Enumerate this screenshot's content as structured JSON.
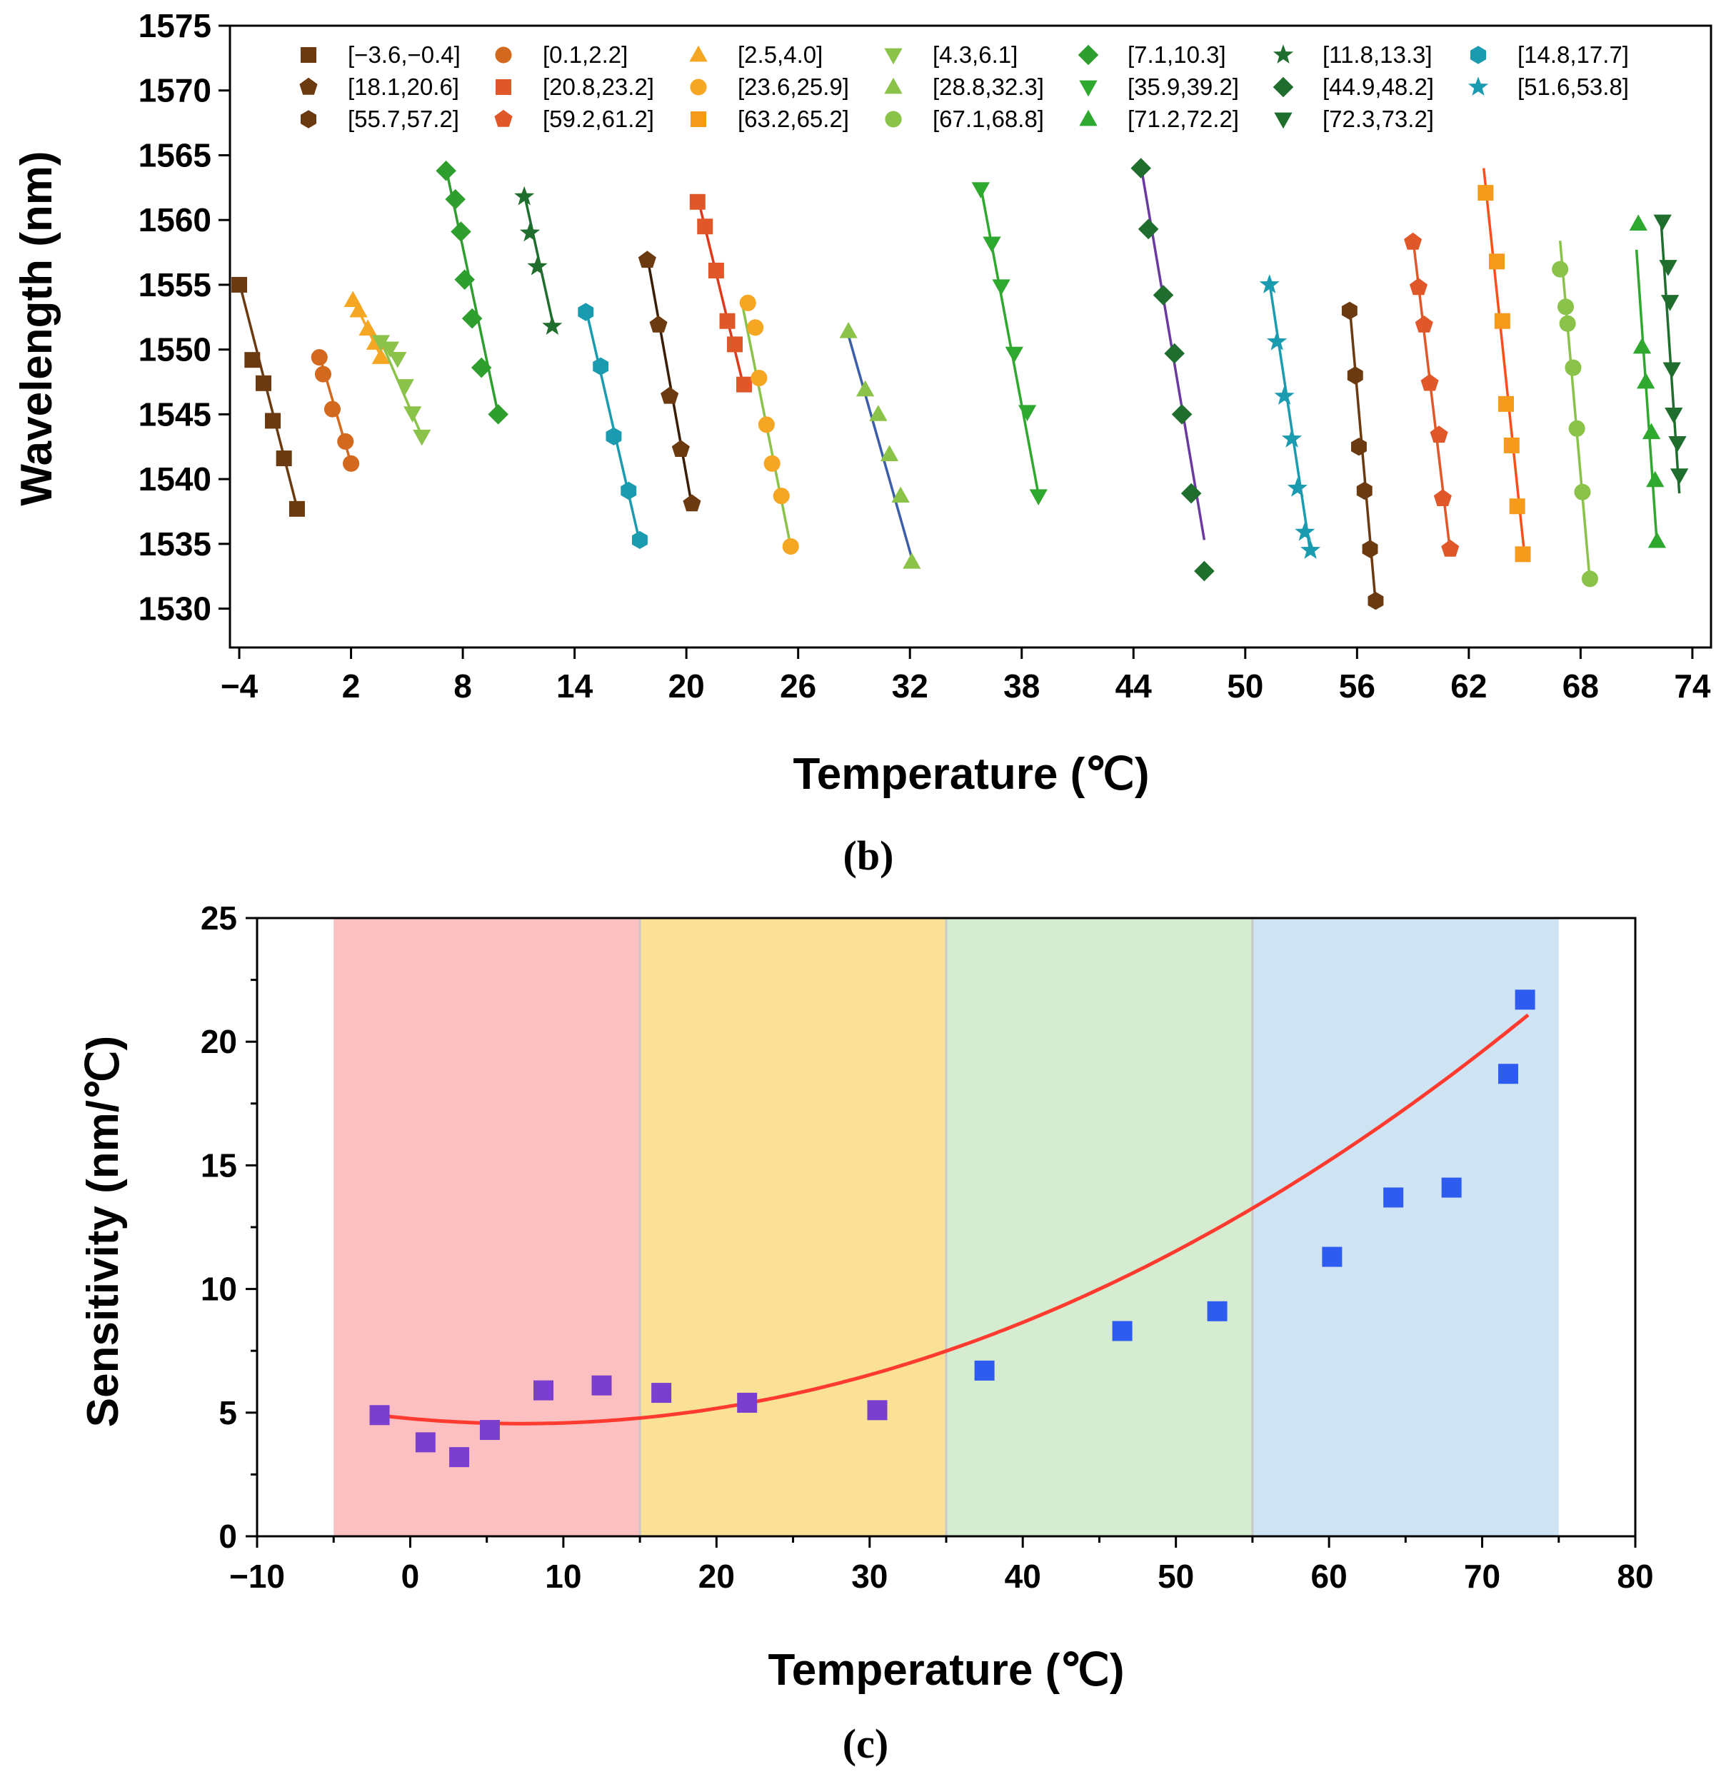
{
  "chart_data": [
    {
      "type": "scatter",
      "panel": "(b)",
      "caption_label": "b",
      "xlabel": "Temperature (℃)",
      "ylabel": "Wavelength (nm)",
      "xlim": [
        -4.5,
        75
      ],
      "ylim": [
        1527,
        1575
      ],
      "xticks": [
        -4,
        2,
        8,
        14,
        20,
        26,
        32,
        38,
        44,
        50,
        56,
        62,
        68,
        74
      ],
      "xtick_labels": [
        "−4",
        "2",
        "8",
        "14",
        "20",
        "26",
        "32",
        "38",
        "44",
        "50",
        "56",
        "62",
        "68",
        "74"
      ],
      "yticks": [
        1530,
        1535,
        1540,
        1545,
        1550,
        1555,
        1560,
        1565,
        1570,
        1575
      ],
      "grid": false,
      "series": [
        {
          "name": "[−3.6,−0.4]",
          "marker": "square",
          "color": "#6b3a10",
          "x": [
            -4.0,
            -3.3,
            -2.7,
            -2.2,
            -1.6,
            -0.9
          ],
          "y": [
            1555.0,
            1549.2,
            1547.4,
            1544.5,
            1541.6,
            1537.7
          ]
        },
        {
          "name": "[0.1,2.2]",
          "marker": "circle",
          "color": "#d2691e",
          "x": [
            0.3,
            0.5,
            1.0,
            1.7,
            2.0
          ],
          "y": [
            1549.4,
            1548.1,
            1545.4,
            1542.9,
            1541.2
          ]
        },
        {
          "name": "[2.5,4.0]",
          "marker": "triangle-up",
          "color": "#f5a623",
          "x": [
            2.1,
            2.4,
            2.9,
            3.3,
            3.6
          ],
          "y": [
            1553.8,
            1553.0,
            1551.6,
            1550.5,
            1549.4
          ]
        },
        {
          "name": "[4.3,6.1]",
          "marker": "triangle-down",
          "color": "#8bc34a",
          "x": [
            3.6,
            4.1,
            4.5,
            4.9,
            5.3,
            5.8
          ],
          "y": [
            1550.6,
            1550.1,
            1549.3,
            1547.2,
            1545.1,
            1543.3
          ]
        },
        {
          "name": "[7.1,10.3]",
          "marker": "diamond",
          "color": "#2e9e2e",
          "x": [
            7.1,
            7.6,
            7.9,
            8.1,
            8.5,
            9.0,
            9.9
          ],
          "y": [
            1563.8,
            1561.6,
            1559.1,
            1555.4,
            1552.4,
            1548.6,
            1545.0
          ]
        },
        {
          "name": "[11.8,13.3]",
          "marker": "star",
          "color": "#1f6e2e",
          "x": [
            11.3,
            11.6,
            12.0,
            12.8
          ],
          "y": [
            1561.8,
            1559.0,
            1556.4,
            1551.8
          ]
        },
        {
          "name": "[14.8,17.7]",
          "marker": "hexagon",
          "color": "#1b9bb0",
          "x": [
            14.6,
            15.4,
            16.1,
            16.9,
            17.5
          ],
          "y": [
            1552.9,
            1548.7,
            1543.3,
            1539.1,
            1535.3
          ]
        },
        {
          "name": "[18.1,20.6]",
          "marker": "pentagon",
          "color": "#6b3a10",
          "x": [
            17.9,
            18.5,
            19.1,
            19.7,
            20.3
          ],
          "y": [
            1556.9,
            1551.9,
            1546.4,
            1542.3,
            1538.1
          ]
        },
        {
          "name": "[20.8,23.2]",
          "marker": "square",
          "color": "#e0582a",
          "x": [
            20.6,
            21.0,
            21.6,
            22.2,
            22.6,
            23.1
          ],
          "y": [
            1561.4,
            1559.5,
            1556.1,
            1552.2,
            1550.4,
            1547.3
          ]
        },
        {
          "name": "[23.6,25.9]",
          "marker": "circle",
          "color": "#f5a623",
          "x": [
            23.3,
            23.7,
            23.9,
            24.3,
            24.6,
            25.1,
            25.6
          ],
          "y": [
            1553.6,
            1551.7,
            1547.8,
            1544.2,
            1541.2,
            1538.7,
            1534.8
          ]
        },
        {
          "name": "[28.8,32.3]",
          "marker": "triangle-up",
          "color": "#8bc34a",
          "x": [
            28.7,
            29.6,
            30.3,
            30.9,
            31.5,
            32.1
          ],
          "y": [
            1551.4,
            1546.9,
            1545.0,
            1541.9,
            1538.7,
            1533.6
          ]
        },
        {
          "name": "[35.9,39.2]",
          "marker": "triangle-down",
          "color": "#2ea82e",
          "x": [
            35.8,
            36.4,
            36.9,
            37.6,
            38.3,
            38.9
          ],
          "y": [
            1562.4,
            1558.2,
            1554.9,
            1549.7,
            1545.2,
            1538.7
          ]
        },
        {
          "name": "[44.9,48.2]",
          "marker": "diamond",
          "color": "#1f6e2e",
          "x": [
            44.4,
            44.8,
            45.6,
            46.2,
            46.6,
            47.1,
            47.8
          ],
          "y": [
            1564.0,
            1559.3,
            1554.2,
            1549.7,
            1545.0,
            1538.9,
            1532.9
          ]
        },
        {
          "name": "[51.6,53.8]",
          "marker": "star",
          "color": "#1b9bb0",
          "x": [
            51.3,
            51.7,
            52.1,
            52.5,
            52.8,
            53.2,
            53.5
          ],
          "y": [
            1555.0,
            1550.6,
            1546.4,
            1543.1,
            1539.3,
            1535.9,
            1534.5
          ]
        },
        {
          "name": "[55.7,57.2]",
          "marker": "hexagon",
          "color": "#6b3a10",
          "x": [
            55.6,
            55.9,
            56.1,
            56.4,
            56.7,
            57.0
          ],
          "y": [
            1553.0,
            1548.0,
            1542.5,
            1539.1,
            1534.6,
            1530.6
          ]
        },
        {
          "name": "[59.2,61.2]",
          "marker": "pentagon",
          "color": "#e0582a",
          "x": [
            59.0,
            59.3,
            59.6,
            59.9,
            60.4,
            60.6,
            61.0
          ],
          "y": [
            1558.3,
            1554.8,
            1551.9,
            1547.4,
            1543.4,
            1538.5,
            1534.6
          ]
        },
        {
          "name": "[63.2,65.2]",
          "marker": "square",
          "color": "#f59a1a",
          "x": [
            62.9,
            63.5,
            63.8,
            64.0,
            64.3,
            64.6,
            64.9
          ],
          "y": [
            1562.1,
            1556.8,
            1552.2,
            1545.8,
            1542.6,
            1537.9,
            1534.2
          ]
        },
        {
          "name": "[67.1,68.8]",
          "marker": "circle",
          "color": "#8bc34a",
          "x": [
            66.9,
            67.2,
            67.3,
            67.6,
            67.8,
            68.1,
            68.5
          ],
          "y": [
            1556.2,
            1553.3,
            1552.0,
            1548.6,
            1543.9,
            1539.0,
            1532.3
          ]
        },
        {
          "name": "[71.2,72.2]",
          "marker": "triangle-up",
          "color": "#2ea82e",
          "x": [
            71.1,
            71.3,
            71.5,
            71.8,
            72.0,
            72.1
          ],
          "y": [
            1559.7,
            1550.2,
            1547.5,
            1543.6,
            1539.9,
            1535.2
          ]
        },
        {
          "name": "[72.3,73.2]",
          "marker": "triangle-down",
          "color": "#1f6e2e",
          "x": [
            72.4,
            72.7,
            72.8,
            72.9,
            73.0,
            73.2,
            73.3
          ],
          "y": [
            1559.9,
            1556.4,
            1553.7,
            1548.5,
            1545.0,
            1542.8,
            1540.3
          ]
        }
      ],
      "fits": [
        {
          "color": "#6b3a10",
          "x": [
            -4.0,
            -0.9
          ],
          "y": [
            1555.2,
            1537.8
          ]
        },
        {
          "color": "#d2691e",
          "x": [
            0.3,
            2.0
          ],
          "y": [
            1549.6,
            1541.2
          ]
        },
        {
          "color": "#f5a623",
          "x": [
            2.1,
            3.7
          ],
          "y": [
            1553.9,
            1549.2
          ]
        },
        {
          "color": "#8bc34a",
          "x": [
            3.5,
            5.9
          ],
          "y": [
            1551.0,
            1543.0
          ]
        },
        {
          "color": "#2e9e2e",
          "x": [
            7.1,
            9.9
          ],
          "y": [
            1564.0,
            1545.0
          ]
        },
        {
          "color": "#1f6e2e",
          "x": [
            11.3,
            12.9
          ],
          "y": [
            1562.0,
            1551.6
          ]
        },
        {
          "color": "#1b9bb0",
          "x": [
            14.6,
            17.5
          ],
          "y": [
            1553.2,
            1535.1
          ]
        },
        {
          "color": "#3a1d05",
          "x": [
            17.9,
            20.3
          ],
          "y": [
            1557.2,
            1537.9
          ]
        },
        {
          "color": "#e0381a",
          "x": [
            20.6,
            23.1
          ],
          "y": [
            1561.8,
            1547.0
          ]
        },
        {
          "color": "#8bc34a",
          "x": [
            23.0,
            25.6
          ],
          "y": [
            1553.5,
            1534.8
          ]
        },
        {
          "color": "#3a5ea8",
          "x": [
            28.6,
            32.2
          ],
          "y": [
            1551.6,
            1533.4
          ]
        },
        {
          "color": "#2ea82e",
          "x": [
            35.8,
            38.9
          ],
          "y": [
            1562.6,
            1538.8
          ]
        },
        {
          "color": "#6a3aa0",
          "x": [
            44.4,
            47.8
          ],
          "y": [
            1564.2,
            1535.3
          ]
        },
        {
          "color": "#1b9bb0",
          "x": [
            51.3,
            53.5
          ],
          "y": [
            1555.2,
            1534.3
          ]
        },
        {
          "color": "#6b3a10",
          "x": [
            55.6,
            57.0
          ],
          "y": [
            1553.4,
            1530.4
          ]
        },
        {
          "color": "#e0582a",
          "x": [
            59.0,
            61.0
          ],
          "y": [
            1558.6,
            1534.4
          ]
        },
        {
          "color": "#ff4e1a",
          "x": [
            62.8,
            65.0
          ],
          "y": [
            1564.0,
            1534.0
          ]
        },
        {
          "color": "#8bc34a",
          "x": [
            66.9,
            68.5
          ],
          "y": [
            1558.4,
            1532.1
          ]
        },
        {
          "color": "#2ea82e",
          "x": [
            71.0,
            72.1
          ],
          "y": [
            1557.7,
            1535.0
          ]
        },
        {
          "color": "#1f6e2e",
          "x": [
            72.3,
            73.3
          ],
          "y": [
            1560.3,
            1538.9
          ]
        }
      ]
    },
    {
      "type": "scatter",
      "panel": "(c)",
      "caption_label": "c",
      "xlabel": "Temperature (℃)",
      "ylabel": "Sensitivity (nm/℃)",
      "xlim": [
        -10,
        80
      ],
      "ylim": [
        0,
        25
      ],
      "xticks": [
        -10,
        0,
        10,
        20,
        30,
        40,
        50,
        60,
        70,
        80
      ],
      "xtick_labels": [
        "−10",
        "0",
        "10",
        "20",
        "30",
        "40",
        "50",
        "60",
        "70",
        "80"
      ],
      "yticks": [
        0,
        5,
        10,
        15,
        20,
        25
      ],
      "grid": false,
      "regions": [
        {
          "x": [
            -5,
            15
          ],
          "color": "#fcc0c0"
        },
        {
          "x": [
            15,
            35
          ],
          "color": "#fbe196"
        },
        {
          "x": [
            35,
            55
          ],
          "color": "#d6ecd0"
        },
        {
          "x": [
            55,
            75
          ],
          "color": "#cfe4f3"
        }
      ],
      "points": [
        {
          "x": -2.0,
          "y": 4.9
        },
        {
          "x": 1.0,
          "y": 3.8
        },
        {
          "x": 3.2,
          "y": 3.2
        },
        {
          "x": 5.2,
          "y": 4.3
        },
        {
          "x": 8.7,
          "y": 5.9
        },
        {
          "x": 12.5,
          "y": 6.1
        },
        {
          "x": 16.4,
          "y": 5.8
        },
        {
          "x": 22.0,
          "y": 5.4
        },
        {
          "x": 30.5,
          "y": 5.1
        },
        {
          "x": 37.5,
          "y": 6.7
        },
        {
          "x": 46.5,
          "y": 8.3
        },
        {
          "x": 52.7,
          "y": 9.1
        },
        {
          "x": 60.2,
          "y": 11.3
        },
        {
          "x": 64.2,
          "y": 13.7
        },
        {
          "x": 68.0,
          "y": 14.1
        },
        {
          "x": 71.7,
          "y": 18.7
        },
        {
          "x": 72.8,
          "y": 21.7
        }
      ],
      "point_color_low": "#7b3fd0",
      "point_color_high": "#2f5cf0",
      "fit": {
        "type": "quadratic",
        "color": "#ff3b30",
        "coefficients": [
          4.76,
          -0.056,
          0.00383
        ],
        "x_range": [
          -2,
          73
        ]
      }
    }
  ]
}
